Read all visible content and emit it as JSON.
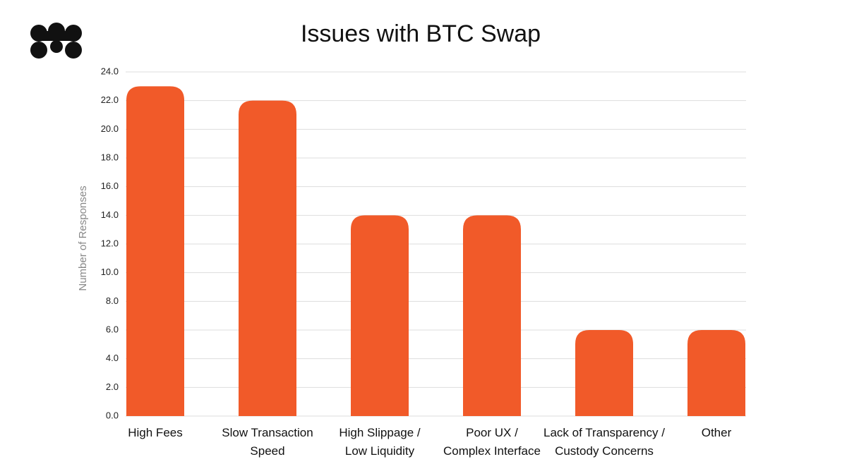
{
  "chart_data": {
    "type": "bar",
    "title": "Issues with BTC Swap",
    "y_label": "Number of Responses",
    "categories": [
      "High Fees",
      "Slow Transaction\nSpeed",
      "High Slippage /\nLow Liquidity",
      "Poor UX /\nComplex Interface",
      "Lack of Transparency /\nCustody Concerns",
      "Other"
    ],
    "values": [
      23,
      22,
      14,
      14,
      6,
      6
    ],
    "color": "#f15a29",
    "ylim": [
      0,
      24
    ],
    "yticks": [
      {
        "value": 0,
        "label": "0.0"
      },
      {
        "value": 2,
        "label": "2.0"
      },
      {
        "value": 4,
        "label": "4.0"
      },
      {
        "value": 6,
        "label": "6.0"
      },
      {
        "value": 8,
        "label": "8.0"
      },
      {
        "value": 10,
        "label": "10.0"
      },
      {
        "value": 12,
        "label": "12.0"
      },
      {
        "value": 14,
        "label": "14.0"
      },
      {
        "value": 16,
        "label": "16.0"
      },
      {
        "value": 18,
        "label": "18.0"
      },
      {
        "value": 20,
        "label": "20.0"
      },
      {
        "value": 22,
        "label": "22.0"
      },
      {
        "value": 24,
        "label": "24.0"
      }
    ],
    "grid": true
  }
}
